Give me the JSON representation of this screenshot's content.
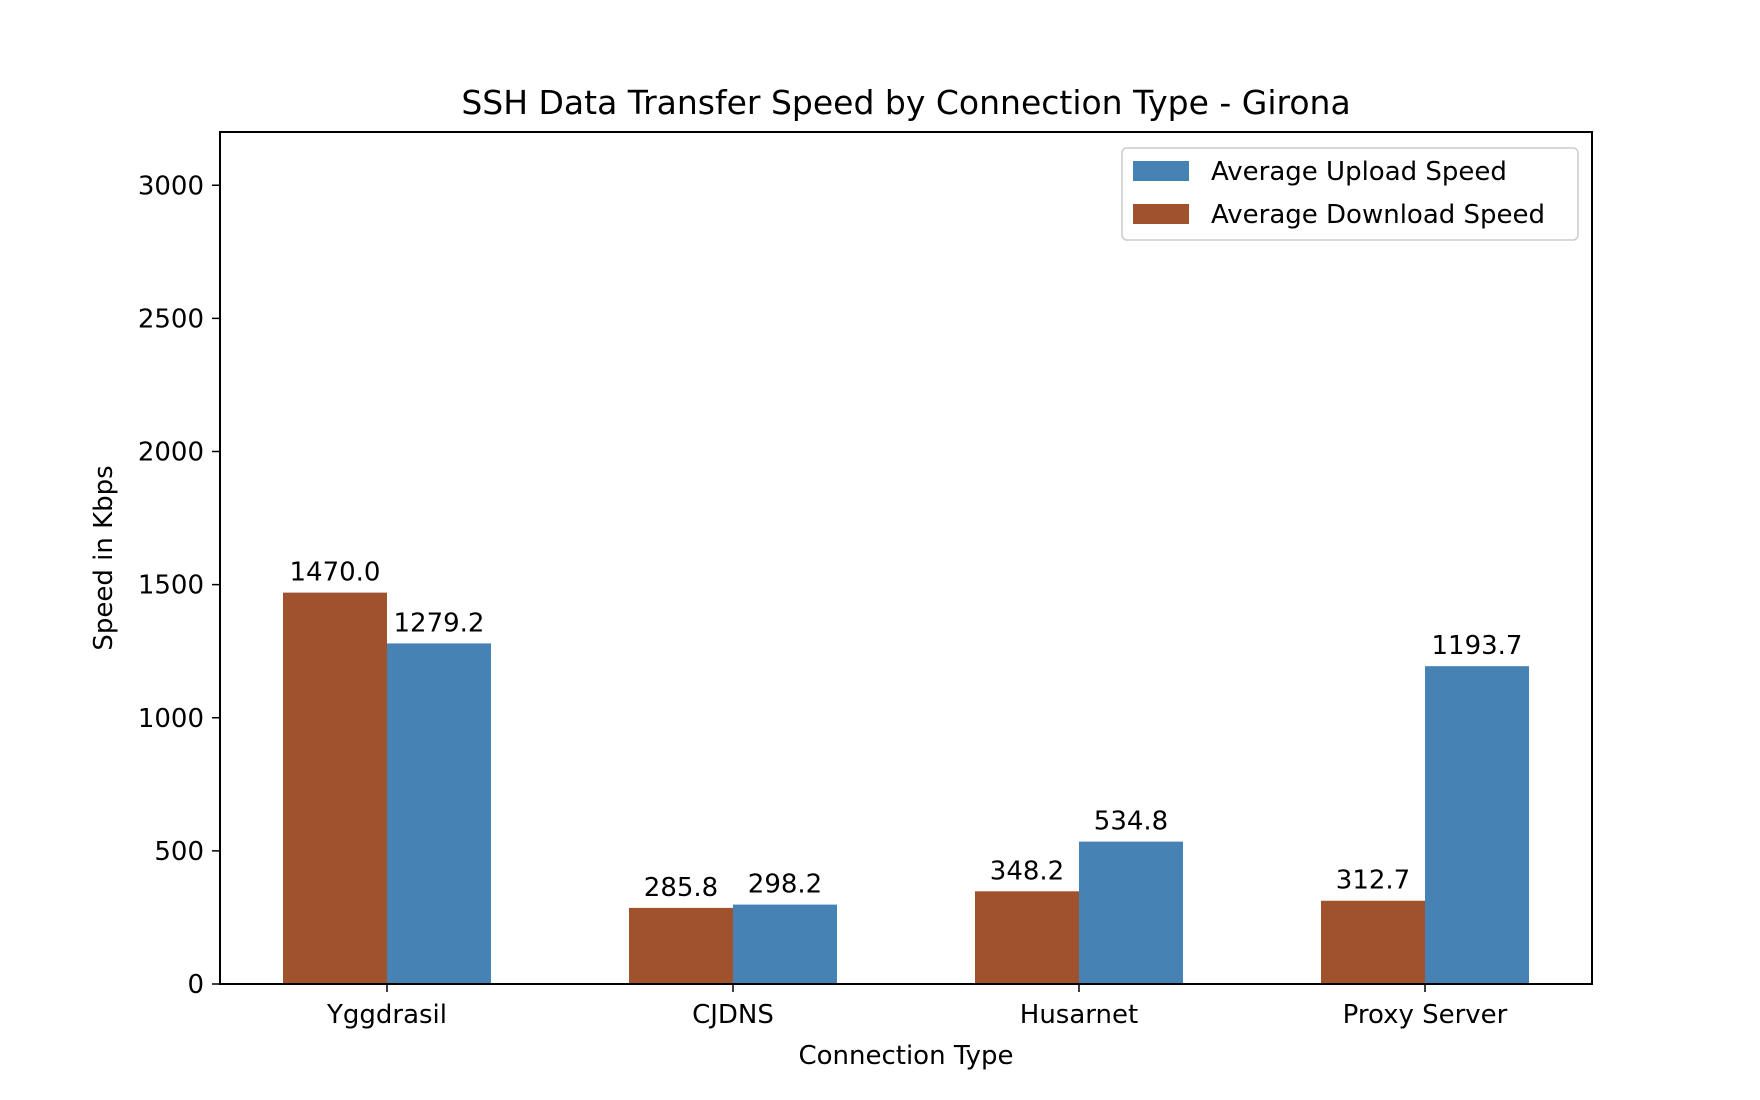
{
  "chart_data": {
    "type": "bar",
    "title": "SSH Data Transfer Speed by Connection Type - Girona",
    "xlabel": "Connection Type",
    "ylabel": "Speed in Kbps",
    "categories": [
      "Yggdrasil",
      "CJDNS",
      "Husarnet",
      "Proxy Server"
    ],
    "series": [
      {
        "name": "Average Download Speed",
        "color": "#A0522D",
        "values": [
          1470.0,
          285.8,
          348.2,
          312.7
        ],
        "labels": [
          "1470.0",
          "285.8",
          "348.2",
          "312.7"
        ]
      },
      {
        "name": "Average Upload Speed",
        "color": "#4682B4",
        "values": [
          1279.2,
          298.2,
          534.8,
          1193.7
        ],
        "labels": [
          "1279.2",
          "298.2",
          "534.8",
          "1193.7"
        ]
      }
    ],
    "ylim": [
      0,
      3200
    ],
    "yticks": [
      "0",
      "500",
      "1000",
      "1500",
      "2000",
      "2500",
      "3000"
    ],
    "grid": false,
    "legend": {
      "position": "top-right",
      "order": [
        "Average Upload Speed",
        "Average Download Speed"
      ]
    }
  }
}
